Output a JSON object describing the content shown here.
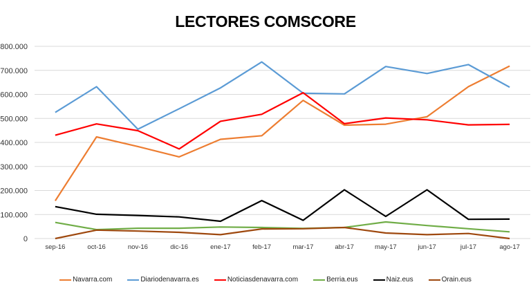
{
  "chart_data": {
    "type": "line",
    "title": "LECTORES COMSCORE",
    "xlabel": "",
    "ylabel": "",
    "categories": [
      "sep-16",
      "oct-16",
      "nov-16",
      "dic-16",
      "ene-17",
      "feb-17",
      "mar-17",
      "abr-17",
      "may-17",
      "jun-17",
      "jul-17",
      "ago-17"
    ],
    "ylim": [
      0,
      800000
    ],
    "yticks": [
      0,
      100000,
      200000,
      300000,
      400000,
      500000,
      600000,
      700000,
      800000
    ],
    "ytick_labels": [
      "0",
      "100.000",
      "200.000",
      "300.000",
      "400.000",
      "500.000",
      "600.000",
      "700.000",
      "800.000"
    ],
    "grid": true,
    "legend_position": "bottom",
    "series": [
      {
        "name": "Navarra.com",
        "color": "#ED7D31",
        "values": [
          157000,
          423000,
          383000,
          340000,
          413000,
          428000,
          575000,
          472000,
          476000,
          507000,
          632000,
          718000
        ]
      },
      {
        "name": "Diariodenavarra.es",
        "color": "#5B9BD5",
        "values": [
          525000,
          632000,
          455000,
          540000,
          627000,
          735000,
          605000,
          602000,
          716000,
          687000,
          724000,
          630000
        ]
      },
      {
        "name": "Noticiasdenavarra.com",
        "color": "#FF0000",
        "values": [
          430000,
          477000,
          449000,
          373000,
          488000,
          517000,
          607000,
          478000,
          502000,
          494000,
          473000,
          475000
        ]
      },
      {
        "name": "Berria.eus",
        "color": "#70AD47",
        "values": [
          67000,
          37000,
          43000,
          43000,
          48000,
          46000,
          42000,
          46000,
          69000,
          54000,
          41000,
          28000
        ]
      },
      {
        "name": "Naiz.eus",
        "color": "#000000",
        "values": [
          133000,
          101000,
          96000,
          90000,
          72000,
          158000,
          76000,
          203000,
          92000,
          203000,
          80000,
          81000
        ]
      },
      {
        "name": "Orain.eus",
        "color": "#9E480E",
        "values": [
          0,
          35000,
          31000,
          26000,
          16000,
          40000,
          41000,
          46000,
          23000,
          16000,
          21000,
          0
        ]
      }
    ]
  }
}
